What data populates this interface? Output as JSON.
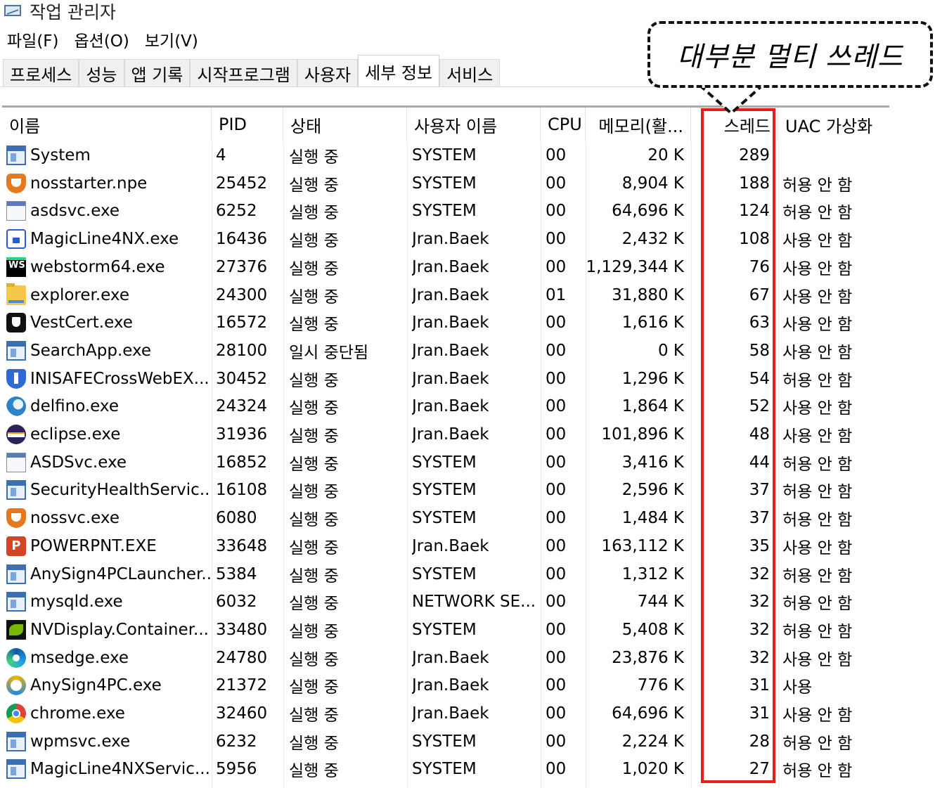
{
  "window": {
    "title": "작업 관리자",
    "icon": "task-manager-icon"
  },
  "menu": [
    "파일(F)",
    "옵션(O)",
    "보기(V)"
  ],
  "tabs": [
    {
      "label": "프로세스",
      "active": false
    },
    {
      "label": "성능",
      "active": false
    },
    {
      "label": "앱 기록",
      "active": false
    },
    {
      "label": "시작프로그램",
      "active": false
    },
    {
      "label": "사용자",
      "active": false
    },
    {
      "label": "세부 정보",
      "active": true
    },
    {
      "label": "서비스",
      "active": false
    }
  ],
  "columns": {
    "name": "이름",
    "pid": "PID",
    "status": "상태",
    "user": "사용자 이름",
    "cpu": "CPU",
    "memory": "메모리(활...",
    "threads": "스레드",
    "uac": "UAC 가상화"
  },
  "annotation": {
    "callout_text": "대부분 멀티 쓰레드",
    "highlight_color": "#e51d1d"
  },
  "rows": [
    {
      "icon": "window",
      "name": "System",
      "pid": "4",
      "status": "실행 중",
      "user": "SYSTEM",
      "cpu": "00",
      "memory": "20 K",
      "threads": "289",
      "uac": ""
    },
    {
      "icon": "shield-orange",
      "name": "nosstarter.npe",
      "pid": "25452",
      "status": "실행 중",
      "user": "SYSTEM",
      "cpu": "00",
      "memory": "8,904 K",
      "threads": "188",
      "uac": "허용 안 함"
    },
    {
      "icon": "bar",
      "name": "asdsvc.exe",
      "pid": "6252",
      "status": "실행 중",
      "user": "SYSTEM",
      "cpu": "00",
      "memory": "64,696 K",
      "threads": "124",
      "uac": "허용 안 함"
    },
    {
      "icon": "lock",
      "name": "MagicLine4NX.exe",
      "pid": "16436",
      "status": "실행 중",
      "user": "Jran.Baek",
      "cpu": "00",
      "memory": "2,432 K",
      "threads": "108",
      "uac": "사용 안 함"
    },
    {
      "icon": "ws",
      "name": "webstorm64.exe",
      "pid": "27376",
      "status": "실행 중",
      "user": "Jran.Baek",
      "cpu": "00",
      "memory": "1,129,344 K",
      "threads": "76",
      "uac": "사용 안 함"
    },
    {
      "icon": "folder",
      "name": "explorer.exe",
      "pid": "24300",
      "status": "실행 중",
      "user": "Jran.Baek",
      "cpu": "01",
      "memory": "31,880 K",
      "threads": "67",
      "uac": "사용 안 함"
    },
    {
      "icon": "vest",
      "name": "VestCert.exe",
      "pid": "16572",
      "status": "실행 중",
      "user": "Jran.Baek",
      "cpu": "00",
      "memory": "1,616 K",
      "threads": "63",
      "uac": "사용 안 함"
    },
    {
      "icon": "window",
      "name": "SearchApp.exe",
      "pid": "28100",
      "status": "일시 중단됨",
      "user": "Jran.Baek",
      "cpu": "00",
      "memory": "0 K",
      "threads": "58",
      "uac": "사용 안 함"
    },
    {
      "icon": "shield-blue",
      "name": "INISAFECrossWebEX...",
      "pid": "30452",
      "status": "실행 중",
      "user": "Jran.Baek",
      "cpu": "00",
      "memory": "1,296 K",
      "threads": "54",
      "uac": "허용 안 함"
    },
    {
      "icon": "wave",
      "name": "delfino.exe",
      "pid": "24324",
      "status": "실행 중",
      "user": "Jran.Baek",
      "cpu": "00",
      "memory": "1,864 K",
      "threads": "52",
      "uac": "사용 안 함"
    },
    {
      "icon": "eclipse",
      "name": "eclipse.exe",
      "pid": "31936",
      "status": "실행 중",
      "user": "Jran.Baek",
      "cpu": "00",
      "memory": "101,896 K",
      "threads": "48",
      "uac": "사용 안 함"
    },
    {
      "icon": "bar",
      "name": "ASDSvc.exe",
      "pid": "16852",
      "status": "실행 중",
      "user": "SYSTEM",
      "cpu": "00",
      "memory": "3,416 K",
      "threads": "44",
      "uac": "허용 안 함"
    },
    {
      "icon": "window",
      "name": "SecurityHealthServic...",
      "pid": "16108",
      "status": "실행 중",
      "user": "SYSTEM",
      "cpu": "00",
      "memory": "2,596 K",
      "threads": "37",
      "uac": "허용 안 함"
    },
    {
      "icon": "shield-orange",
      "name": "nossvc.exe",
      "pid": "6080",
      "status": "실행 중",
      "user": "SYSTEM",
      "cpu": "00",
      "memory": "1,484 K",
      "threads": "37",
      "uac": "허용 안 함"
    },
    {
      "icon": "ppt",
      "name": "POWERPNT.EXE",
      "pid": "33648",
      "status": "실행 중",
      "user": "Jran.Baek",
      "cpu": "00",
      "memory": "163,112 K",
      "threads": "35",
      "uac": "사용 안 함"
    },
    {
      "icon": "window",
      "name": "AnySign4PCLauncher...",
      "pid": "5384",
      "status": "실행 중",
      "user": "SYSTEM",
      "cpu": "00",
      "memory": "1,312 K",
      "threads": "32",
      "uac": "허용 안 함"
    },
    {
      "icon": "window",
      "name": "mysqld.exe",
      "pid": "6032",
      "status": "실행 중",
      "user": "NETWORK SE...",
      "cpu": "00",
      "memory": "744 K",
      "threads": "32",
      "uac": "허용 안 함"
    },
    {
      "icon": "nvidia",
      "name": "NVDisplay.Container....",
      "pid": "33480",
      "status": "실행 중",
      "user": "SYSTEM",
      "cpu": "00",
      "memory": "5,408 K",
      "threads": "32",
      "uac": "허용 안 함"
    },
    {
      "icon": "edge",
      "name": "msedge.exe",
      "pid": "24780",
      "status": "실행 중",
      "user": "Jran.Baek",
      "cpu": "00",
      "memory": "23,876 K",
      "threads": "32",
      "uac": "사용 안 함"
    },
    {
      "icon": "anysign",
      "name": "AnySign4PC.exe",
      "pid": "21372",
      "status": "실행 중",
      "user": "Jran.Baek",
      "cpu": "00",
      "memory": "776 K",
      "threads": "31",
      "uac": "사용"
    },
    {
      "icon": "chrome",
      "name": "chrome.exe",
      "pid": "32460",
      "status": "실행 중",
      "user": "Jran.Baek",
      "cpu": "00",
      "memory": "64,696 K",
      "threads": "31",
      "uac": "사용 안 함"
    },
    {
      "icon": "window",
      "name": "wpmsvc.exe",
      "pid": "6232",
      "status": "실행 중",
      "user": "SYSTEM",
      "cpu": "00",
      "memory": "2,224 K",
      "threads": "28",
      "uac": "허용 안 함"
    },
    {
      "icon": "window",
      "name": "MagicLine4NXServic...",
      "pid": "5956",
      "status": "실행 중",
      "user": "SYSTEM",
      "cpu": "00",
      "memory": "1,020 K",
      "threads": "27",
      "uac": "허용 안 함"
    }
  ]
}
